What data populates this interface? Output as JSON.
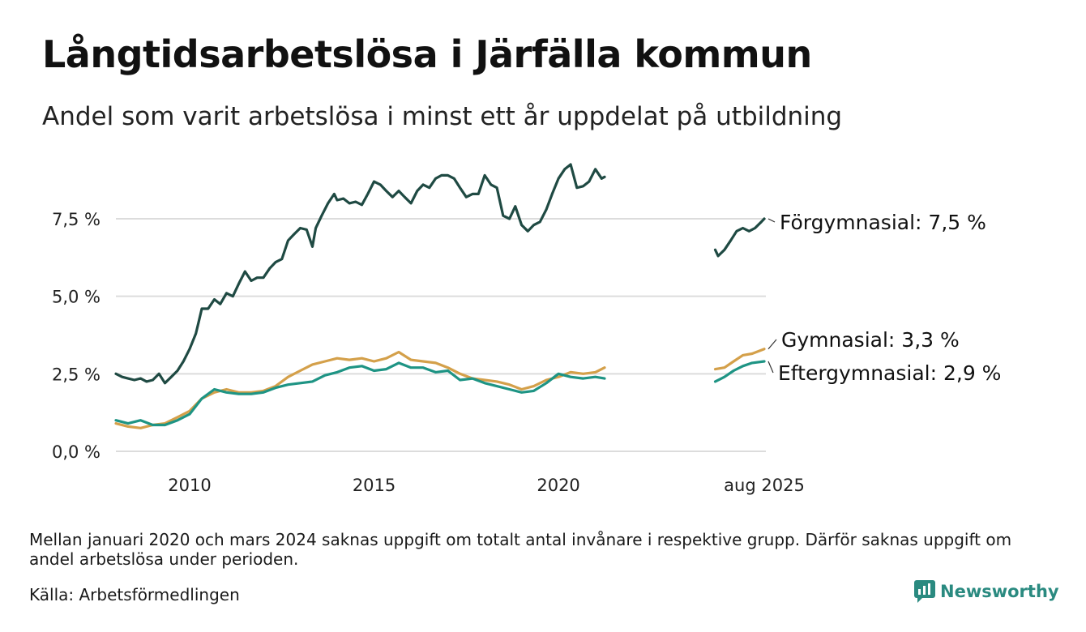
{
  "title": "Långtidsarbetslösa i Järfälla kommun",
  "subtitle": "Andel som varit arbetslösa i minst ett år uppdelat på utbildning",
  "note": "Mellan januari 2020 och mars 2024 saknas uppgift om totalt antal invånare i respektive grupp. Därför saknas uppgift om andel arbetslösa under perioden.",
  "source": "Källa: Arbetsförmedlingen",
  "brand": {
    "name": "Newsworthy",
    "icon": "newsworthy-logo-icon"
  },
  "colors": {
    "forgymnasial": "#1f4a43",
    "gymnasial": "#d4a04a",
    "eftergymnasial": "#1e9484",
    "grid": "#dcdcdc"
  },
  "chart_data": {
    "type": "line",
    "title": "Långtidsarbetslösa i Järfälla kommun",
    "subtitle": "Andel som varit arbetslösa i minst ett år uppdelat på utbildning",
    "ylim": [
      0,
      9.5
    ],
    "y_ticks": [
      0,
      2.5,
      5.0,
      7.5
    ],
    "y_tick_labels": [
      "0,0 %",
      "2,5 %",
      "5,0 %",
      "7,5 %"
    ],
    "x_ticks": [
      2010,
      2015,
      2020,
      2025.58
    ],
    "x_tick_labels": [
      "2010",
      "2015",
      "2020",
      "aug 2025"
    ],
    "grid": "horizontal",
    "series": [
      {
        "name": "Förgymnasial",
        "end_label": "Förgymnasial: 7,5 %",
        "color": "#1f4a43",
        "segments": [
          [
            [
              2008.0,
              2.5
            ],
            [
              2008.17,
              2.4
            ],
            [
              2008.33,
              2.35
            ],
            [
              2008.5,
              2.3
            ],
            [
              2008.67,
              2.35
            ],
            [
              2008.83,
              2.25
            ],
            [
              2009.0,
              2.3
            ],
            [
              2009.17,
              2.5
            ],
            [
              2009.33,
              2.2
            ],
            [
              2009.5,
              2.4
            ],
            [
              2009.67,
              2.6
            ],
            [
              2009.83,
              2.9
            ],
            [
              2010.0,
              3.3
            ],
            [
              2010.17,
              3.8
            ],
            [
              2010.25,
              4.2
            ],
            [
              2010.33,
              4.6
            ],
            [
              2010.5,
              4.6
            ],
            [
              2010.67,
              4.9
            ],
            [
              2010.83,
              4.75
            ],
            [
              2011.0,
              5.1
            ],
            [
              2011.17,
              5.0
            ],
            [
              2011.33,
              5.4
            ],
            [
              2011.5,
              5.8
            ],
            [
              2011.67,
              5.5
            ],
            [
              2011.83,
              5.6
            ],
            [
              2012.0,
              5.6
            ],
            [
              2012.17,
              5.9
            ],
            [
              2012.33,
              6.1
            ],
            [
              2012.5,
              6.2
            ],
            [
              2012.67,
              6.8
            ],
            [
              2012.83,
              7.0
            ],
            [
              2013.0,
              7.2
            ],
            [
              2013.17,
              7.15
            ],
            [
              2013.33,
              6.6
            ],
            [
              2013.42,
              7.2
            ],
            [
              2013.58,
              7.6
            ],
            [
              2013.75,
              8.0
            ],
            [
              2013.92,
              8.3
            ],
            [
              2014.0,
              8.1
            ],
            [
              2014.17,
              8.15
            ],
            [
              2014.33,
              8.0
            ],
            [
              2014.5,
              8.05
            ],
            [
              2014.67,
              7.95
            ],
            [
              2014.83,
              8.3
            ],
            [
              2015.0,
              8.7
            ],
            [
              2015.17,
              8.6
            ],
            [
              2015.33,
              8.4
            ],
            [
              2015.5,
              8.2
            ],
            [
              2015.67,
              8.4
            ],
            [
              2015.83,
              8.2
            ],
            [
              2016.0,
              8.0
            ],
            [
              2016.17,
              8.4
            ],
            [
              2016.33,
              8.6
            ],
            [
              2016.5,
              8.5
            ],
            [
              2016.67,
              8.8
            ],
            [
              2016.83,
              8.9
            ],
            [
              2017.0,
              8.9
            ],
            [
              2017.17,
              8.8
            ],
            [
              2017.33,
              8.5
            ],
            [
              2017.5,
              8.2
            ],
            [
              2017.67,
              8.3
            ],
            [
              2017.83,
              8.3
            ],
            [
              2018.0,
              8.9
            ],
            [
              2018.17,
              8.6
            ],
            [
              2018.33,
              8.5
            ],
            [
              2018.5,
              7.6
            ],
            [
              2018.67,
              7.5
            ],
            [
              2018.83,
              7.9
            ],
            [
              2019.0,
              7.3
            ],
            [
              2019.17,
              7.1
            ],
            [
              2019.33,
              7.3
            ],
            [
              2019.5,
              7.4
            ],
            [
              2019.67,
              7.8
            ],
            [
              2019.83,
              8.3
            ],
            [
              2020.0,
              8.8
            ],
            [
              2020.17,
              9.1
            ],
            [
              2020.33,
              9.25
            ],
            [
              2020.5,
              8.5
            ],
            [
              2020.67,
              8.55
            ],
            [
              2020.83,
              8.7
            ],
            [
              2021.0,
              9.1
            ],
            [
              2021.17,
              8.8
            ],
            [
              2021.25,
              8.85
            ]
          ],
          [
            [
              2024.25,
              6.5
            ],
            [
              2024.33,
              6.3
            ],
            [
              2024.5,
              6.5
            ],
            [
              2024.67,
              6.8
            ],
            [
              2024.83,
              7.1
            ],
            [
              2025.0,
              7.2
            ],
            [
              2025.17,
              7.1
            ],
            [
              2025.33,
              7.2
            ],
            [
              2025.5,
              7.4
            ],
            [
              2025.58,
              7.5
            ]
          ]
        ]
      },
      {
        "name": "Gymnasial",
        "end_label": "Gymnasial: 3,3 %",
        "color": "#d4a04a",
        "segments": [
          [
            [
              2008.0,
              0.9
            ],
            [
              2008.33,
              0.8
            ],
            [
              2008.67,
              0.75
            ],
            [
              2009.0,
              0.85
            ],
            [
              2009.33,
              0.9
            ],
            [
              2009.67,
              1.1
            ],
            [
              2010.0,
              1.3
            ],
            [
              2010.33,
              1.7
            ],
            [
              2010.67,
              1.9
            ],
            [
              2011.0,
              2.0
            ],
            [
              2011.33,
              1.9
            ],
            [
              2011.67,
              1.9
            ],
            [
              2012.0,
              1.95
            ],
            [
              2012.33,
              2.1
            ],
            [
              2012.67,
              2.4
            ],
            [
              2013.0,
              2.6
            ],
            [
              2013.33,
              2.8
            ],
            [
              2013.67,
              2.9
            ],
            [
              2014.0,
              3.0
            ],
            [
              2014.33,
              2.95
            ],
            [
              2014.67,
              3.0
            ],
            [
              2015.0,
              2.9
            ],
            [
              2015.33,
              3.0
            ],
            [
              2015.67,
              3.2
            ],
            [
              2016.0,
              2.95
            ],
            [
              2016.33,
              2.9
            ],
            [
              2016.67,
              2.85
            ],
            [
              2017.0,
              2.7
            ],
            [
              2017.33,
              2.5
            ],
            [
              2017.67,
              2.35
            ],
            [
              2018.0,
              2.3
            ],
            [
              2018.33,
              2.25
            ],
            [
              2018.67,
              2.15
            ],
            [
              2019.0,
              2.0
            ],
            [
              2019.33,
              2.1
            ],
            [
              2019.67,
              2.3
            ],
            [
              2020.0,
              2.4
            ],
            [
              2020.33,
              2.55
            ],
            [
              2020.67,
              2.5
            ],
            [
              2021.0,
              2.55
            ],
            [
              2021.25,
              2.7
            ]
          ],
          [
            [
              2024.25,
              2.65
            ],
            [
              2024.5,
              2.7
            ],
            [
              2024.75,
              2.9
            ],
            [
              2025.0,
              3.1
            ],
            [
              2025.25,
              3.15
            ],
            [
              2025.58,
              3.3
            ]
          ]
        ]
      },
      {
        "name": "Eftergymnasial",
        "end_label": "Eftergymnasial: 2,9 %",
        "color": "#1e9484",
        "segments": [
          [
            [
              2008.0,
              1.0
            ],
            [
              2008.33,
              0.9
            ],
            [
              2008.67,
              1.0
            ],
            [
              2009.0,
              0.85
            ],
            [
              2009.33,
              0.85
            ],
            [
              2009.67,
              1.0
            ],
            [
              2010.0,
              1.2
            ],
            [
              2010.33,
              1.7
            ],
            [
              2010.67,
              2.0
            ],
            [
              2011.0,
              1.9
            ],
            [
              2011.33,
              1.85
            ],
            [
              2011.67,
              1.85
            ],
            [
              2012.0,
              1.9
            ],
            [
              2012.33,
              2.05
            ],
            [
              2012.67,
              2.15
            ],
            [
              2013.0,
              2.2
            ],
            [
              2013.33,
              2.25
            ],
            [
              2013.67,
              2.45
            ],
            [
              2014.0,
              2.55
            ],
            [
              2014.33,
              2.7
            ],
            [
              2014.67,
              2.75
            ],
            [
              2015.0,
              2.6
            ],
            [
              2015.33,
              2.65
            ],
            [
              2015.67,
              2.85
            ],
            [
              2016.0,
              2.7
            ],
            [
              2016.33,
              2.7
            ],
            [
              2016.67,
              2.55
            ],
            [
              2017.0,
              2.6
            ],
            [
              2017.33,
              2.3
            ],
            [
              2017.67,
              2.35
            ],
            [
              2018.0,
              2.2
            ],
            [
              2018.33,
              2.1
            ],
            [
              2018.67,
              2.0
            ],
            [
              2019.0,
              1.9
            ],
            [
              2019.33,
              1.95
            ],
            [
              2019.67,
              2.2
            ],
            [
              2020.0,
              2.5
            ],
            [
              2020.33,
              2.4
            ],
            [
              2020.67,
              2.35
            ],
            [
              2021.0,
              2.4
            ],
            [
              2021.25,
              2.35
            ]
          ],
          [
            [
              2024.25,
              2.25
            ],
            [
              2024.5,
              2.4
            ],
            [
              2024.75,
              2.6
            ],
            [
              2025.0,
              2.75
            ],
            [
              2025.25,
              2.85
            ],
            [
              2025.58,
              2.9
            ]
          ]
        ]
      }
    ]
  }
}
